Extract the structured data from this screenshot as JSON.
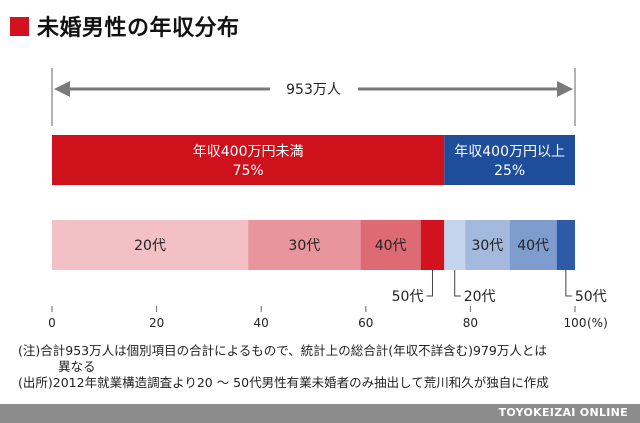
{
  "title": "未婚男性の年収分布",
  "total_label": "953万人",
  "x_axis": {
    "ticks": [
      "0",
      "20",
      "40",
      "60",
      "80",
      "100"
    ],
    "unit": "(%)"
  },
  "notes": [
    "(注)合計953万人は個別項目の合計によるもので、統計上の総合計(年収不詳含む)979万人とは",
    "異なる",
    "(出所)2012年就業構造調査より20 〜 50代男性有業未婚者のみ抽出して荒川和久が独自に作成"
  ],
  "footer": "TOYOKEIZAI ONLINE",
  "colors": {
    "red": "#cf111c",
    "blue": "#1e4d9b",
    "red_20s": "#f2c0c5",
    "red_30s": "#e8959d",
    "red_40s": "#de6a74",
    "red_50s": "#d2121f",
    "blue_20s": "#c4d4ec",
    "blue_30s": "#a3b9de",
    "blue_40s": "#7f9ccf",
    "blue_50s": "#2f5aa8",
    "arrow": "#7a7a7a"
  },
  "chart_data": [
    {
      "type": "bar",
      "stacked": true,
      "orientation": "horizontal",
      "xlim": [
        0,
        100
      ],
      "segments": [
        {
          "label": "年収400万円未満",
          "value_label": "75%",
          "value": 75,
          "color": "#cf111c"
        },
        {
          "label": "年収400万円以上",
          "value_label": "25%",
          "value": 25,
          "color": "#1e4d9b"
        }
      ]
    },
    {
      "type": "bar",
      "stacked": true,
      "orientation": "horizontal",
      "xlim": [
        0,
        100
      ],
      "segments": [
        {
          "group": "年収400万円未満",
          "label": "20代",
          "start": 0,
          "value": 37.5,
          "color": "#f2c0c5",
          "label_inside": true
        },
        {
          "group": "年収400万円未満",
          "label": "30代",
          "start": 37.5,
          "value": 21.5,
          "color": "#e8959d",
          "label_inside": true
        },
        {
          "group": "年収400万円未満",
          "label": "40代",
          "start": 59,
          "value": 11.5,
          "color": "#de6a74",
          "label_inside": true
        },
        {
          "group": "年収400万円未満",
          "label": "50代",
          "start": 70.5,
          "value": 4.5,
          "color": "#d2121f",
          "label_inside": false
        },
        {
          "group": "年収400万円以上",
          "label": "20代",
          "start": 75,
          "value": 4,
          "color": "#c4d4ec",
          "label_inside": false
        },
        {
          "group": "年収400万円以上",
          "label": "30代",
          "start": 79,
          "value": 8.5,
          "color": "#a3b9de",
          "label_inside": true
        },
        {
          "group": "年収400万円以上",
          "label": "40代",
          "start": 87.5,
          "value": 9,
          "color": "#7f9ccf",
          "label_inside": true
        },
        {
          "group": "年収400万円以上",
          "label": "50代",
          "start": 96.5,
          "value": 3.5,
          "color": "#2f5aa8",
          "label_inside": false
        }
      ]
    }
  ]
}
